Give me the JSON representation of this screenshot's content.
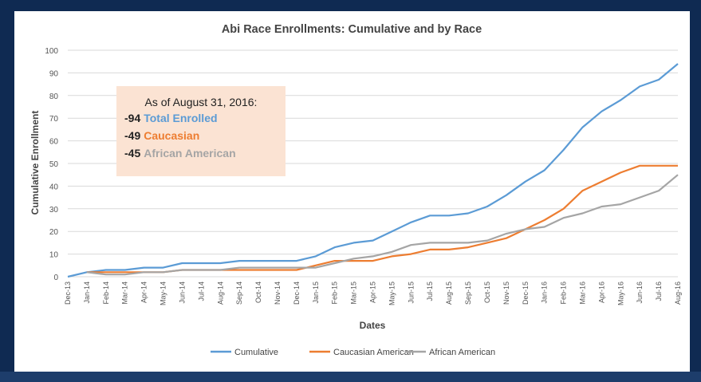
{
  "chart_data": {
    "type": "line",
    "title": "Abi Race Enrollments: Cumulative and by Race",
    "xlabel": "Dates",
    "ylabel": "Cumulative Enrollment",
    "ylim": [
      0,
      100
    ],
    "yticks": [
      0,
      10,
      20,
      30,
      40,
      50,
      60,
      70,
      80,
      90,
      100
    ],
    "grid": "horizontal",
    "legend_position": "bottom",
    "categories": [
      "Dec-13",
      "Jan-14",
      "Feb-14",
      "Mar-14",
      "Apr-14",
      "May-14",
      "Jun-14",
      "Jul-14",
      "Aug-14",
      "Sep-14",
      "Oct-14",
      "Nov-14",
      "Dec-14",
      "Jan-15",
      "Feb-15",
      "Mar-15",
      "Apr-15",
      "May-15",
      "Jun-15",
      "Jul-15",
      "Aug-15",
      "Sep-15",
      "Oct-15",
      "Nov-15",
      "Dec-15",
      "Jan-16",
      "Feb-16",
      "Mar-16",
      "Apr-16",
      "May-16",
      "Jun-16",
      "Jul-16",
      "Aug-16"
    ],
    "series": [
      {
        "name": "Cumulative",
        "color": "#5b9bd5",
        "values": [
          0,
          2,
          3,
          3,
          4,
          4,
          6,
          6,
          6,
          7,
          7,
          7,
          7,
          9,
          13,
          15,
          16,
          20,
          24,
          27,
          27,
          28,
          31,
          36,
          42,
          47,
          56,
          66,
          73,
          78,
          84,
          87,
          94
        ]
      },
      {
        "name": "Caucasian American",
        "color": "#ed7d31",
        "values": [
          null,
          2,
          2,
          2,
          2,
          2,
          3,
          3,
          3,
          3,
          3,
          3,
          3,
          5,
          7,
          7,
          7,
          9,
          10,
          12,
          12,
          13,
          15,
          17,
          21,
          25,
          30,
          38,
          42,
          46,
          49,
          49,
          49
        ]
      },
      {
        "name": "African American",
        "color": "#a5a5a5",
        "values": [
          null,
          2,
          1,
          1,
          2,
          2,
          3,
          3,
          3,
          4,
          4,
          4,
          4,
          4,
          6,
          8,
          9,
          11,
          14,
          15,
          15,
          15,
          16,
          19,
          21,
          22,
          26,
          28,
          31,
          32,
          35,
          38,
          45
        ]
      }
    ],
    "annotation": {
      "heading": "As of August 31, 2016:",
      "lines": [
        {
          "number": "-94",
          "label": "Total Enrolled",
          "color": "#5b9bd5"
        },
        {
          "number": "-49",
          "label": "Caucasian",
          "color": "#ed7d31"
        },
        {
          "number": "-45",
          "label": "African American",
          "color": "#a5a5a5"
        }
      ]
    }
  }
}
